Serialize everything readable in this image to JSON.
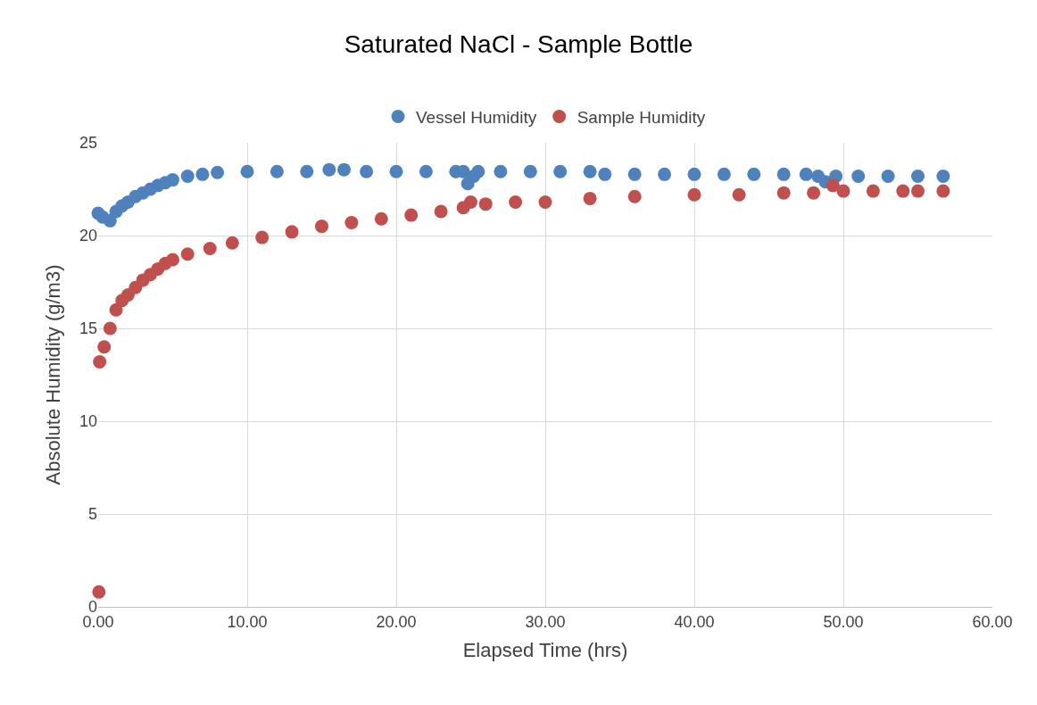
{
  "chart_data": {
    "type": "scatter",
    "title": "Saturated NaCl - Sample Bottle",
    "xlabel": "Elapsed Time (hrs)",
    "ylabel": "Absolute Humidity (g/m3)",
    "xlim": [
      0,
      60
    ],
    "xticks": [
      {
        "value": 0,
        "label": "0.00"
      },
      {
        "value": 10,
        "label": "10.00"
      },
      {
        "value": 20,
        "label": "20.00"
      },
      {
        "value": 30,
        "label": "30.00"
      },
      {
        "value": 40,
        "label": "40.00"
      },
      {
        "value": 50,
        "label": "50.00"
      },
      {
        "value": 60,
        "label": "60.00"
      }
    ],
    "ylim": [
      0,
      25
    ],
    "yticks": [
      0,
      5,
      10,
      15,
      20,
      25
    ],
    "grid": true,
    "legend": "top",
    "marker": "circle",
    "series": [
      {
        "name": "Vessel Humidity",
        "color": "#4f81bd",
        "x": [
          0,
          0.3,
          0.8,
          1.2,
          1.6,
          2,
          2.5,
          3,
          3.5,
          4,
          4.5,
          5,
          6,
          7,
          8,
          10,
          12,
          14,
          15.5,
          16.5,
          18,
          20,
          22,
          24,
          24.5,
          24.8,
          25.2,
          25.5,
          27,
          29,
          31,
          33,
          34,
          36,
          38,
          40,
          42,
          44,
          46,
          47.5,
          48.3,
          48.8,
          49.5,
          51,
          53,
          55,
          56.7
        ],
        "values": [
          21.2,
          21.0,
          20.8,
          21.3,
          21.6,
          21.8,
          22.1,
          22.3,
          22.5,
          22.7,
          22.85,
          23.0,
          23.2,
          23.3,
          23.4,
          23.45,
          23.45,
          23.45,
          23.55,
          23.55,
          23.45,
          23.45,
          23.45,
          23.45,
          23.45,
          22.8,
          23.2,
          23.45,
          23.45,
          23.45,
          23.45,
          23.45,
          23.3,
          23.3,
          23.3,
          23.3,
          23.3,
          23.3,
          23.3,
          23.3,
          23.2,
          22.9,
          23.2,
          23.2,
          23.2,
          23.2,
          23.2
        ]
      },
      {
        "name": "Sample Humidity",
        "color": "#c0504d",
        "x": [
          0.05,
          0.1,
          0.4,
          0.8,
          1.2,
          1.6,
          2,
          2.5,
          3,
          3.5,
          4,
          4.5,
          5,
          6,
          7.5,
          9,
          11,
          13,
          15,
          17,
          19,
          21,
          23,
          24.5,
          25,
          26,
          28,
          30,
          33,
          36,
          40,
          43,
          46,
          48,
          49.3,
          50,
          52,
          54,
          55,
          56.7
        ],
        "values": [
          0.8,
          13.2,
          14.0,
          15.0,
          16.0,
          16.5,
          16.8,
          17.2,
          17.6,
          17.9,
          18.2,
          18.5,
          18.7,
          19.0,
          19.3,
          19.6,
          19.9,
          20.2,
          20.5,
          20.7,
          20.9,
          21.1,
          21.3,
          21.5,
          21.8,
          21.7,
          21.8,
          21.8,
          22.0,
          22.1,
          22.2,
          22.2,
          22.3,
          22.3,
          22.7,
          22.4,
          22.4,
          22.4,
          22.4,
          22.4
        ]
      }
    ]
  }
}
